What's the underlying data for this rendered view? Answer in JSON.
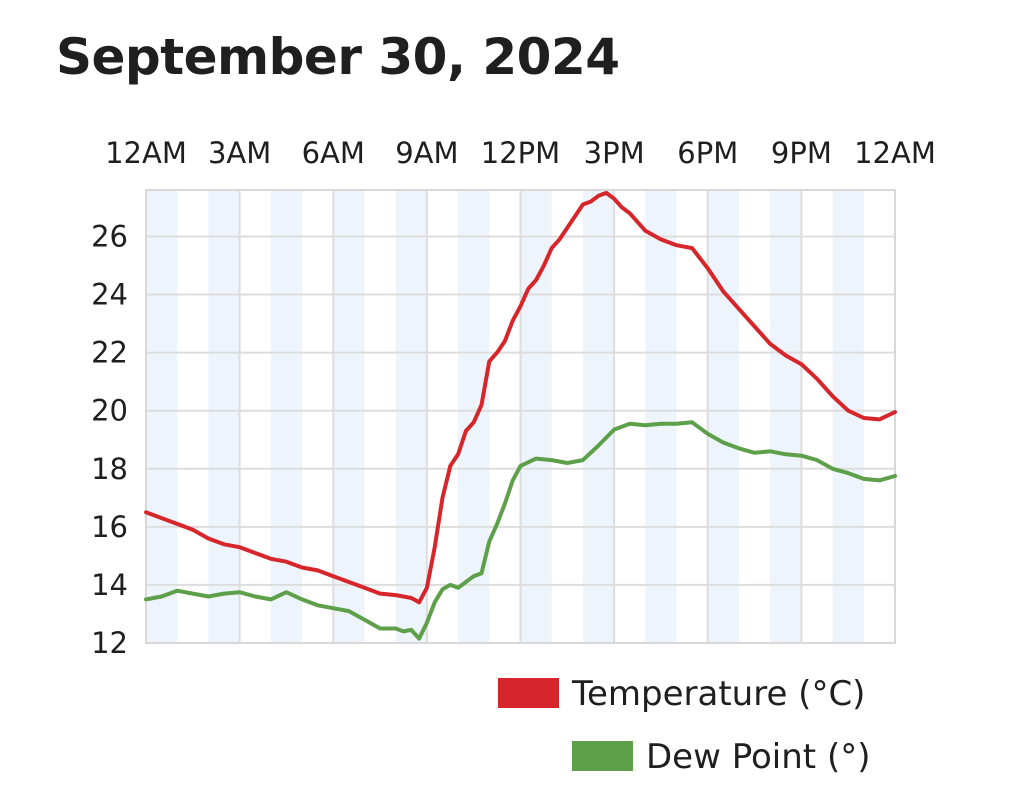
{
  "title": "September 30, 2024",
  "chart_data": {
    "type": "line",
    "title": "September 30, 2024",
    "x_ticks": [
      "12AM",
      "3AM",
      "6AM",
      "9AM",
      "12PM",
      "3PM",
      "6PM",
      "9PM",
      "12AM"
    ],
    "y_ticks": [
      12,
      14,
      16,
      18,
      20,
      22,
      24,
      26
    ],
    "xlim": [
      0,
      24
    ],
    "ylim": [
      12,
      27.6
    ],
    "grid": true,
    "legend_position": "bottom-right",
    "series": [
      {
        "name": "Temperature (°C)",
        "color": "#d7262b",
        "x": [
          0,
          0.5,
          1,
          1.5,
          2,
          2.5,
          3,
          3.5,
          4,
          4.5,
          5,
          5.5,
          6,
          6.5,
          7,
          7.5,
          8,
          8.25,
          8.5,
          8.75,
          9,
          9.25,
          9.5,
          9.75,
          10,
          10.25,
          10.5,
          10.75,
          11,
          11.25,
          11.5,
          11.75,
          12,
          12.25,
          12.5,
          12.75,
          13,
          13.25,
          13.5,
          13.75,
          14,
          14.25,
          14.5,
          14.75,
          15,
          15.25,
          15.5,
          15.75,
          16,
          16.5,
          17,
          17.5,
          18,
          18.5,
          19,
          19.5,
          20,
          20.5,
          21,
          21.5,
          22,
          22.5,
          23,
          23.5,
          24
        ],
        "values": [
          16.5,
          16.3,
          16.1,
          15.9,
          15.6,
          15.4,
          15.3,
          15.1,
          14.9,
          14.8,
          14.6,
          14.5,
          14.3,
          14.1,
          13.9,
          13.7,
          13.65,
          13.6,
          13.55,
          13.4,
          13.9,
          15.3,
          17.0,
          18.1,
          18.5,
          19.3,
          19.6,
          20.2,
          21.7,
          22.0,
          22.4,
          23.1,
          23.6,
          24.2,
          24.5,
          25.0,
          25.6,
          25.9,
          26.3,
          26.7,
          27.1,
          27.2,
          27.4,
          27.5,
          27.3,
          27.0,
          26.8,
          26.5,
          26.2,
          25.9,
          25.7,
          25.6,
          24.9,
          24.1,
          23.5,
          22.9,
          22.3,
          21.9,
          21.6,
          21.1,
          20.5,
          20.0,
          19.75,
          19.7,
          19.95
        ]
      },
      {
        "name": "Dew Point (°)",
        "color": "#5ea04a",
        "x": [
          0,
          0.5,
          1,
          1.5,
          2,
          2.5,
          3,
          3.5,
          4,
          4.5,
          5,
          5.5,
          6,
          6.5,
          7,
          7.5,
          8,
          8.25,
          8.5,
          8.75,
          9,
          9.25,
          9.5,
          9.75,
          10,
          10.25,
          10.5,
          10.75,
          11,
          11.25,
          11.5,
          11.75,
          12,
          12.5,
          13,
          13.5,
          14,
          14.5,
          15,
          15.5,
          16,
          16.5,
          17,
          17.5,
          18,
          18.5,
          19,
          19.5,
          20,
          20.5,
          21,
          21.5,
          22,
          22.5,
          23,
          23.5,
          24
        ],
        "values": [
          13.5,
          13.6,
          13.8,
          13.7,
          13.6,
          13.7,
          13.75,
          13.6,
          13.5,
          13.75,
          13.5,
          13.3,
          13.2,
          13.1,
          12.8,
          12.5,
          12.5,
          12.4,
          12.45,
          12.15,
          12.7,
          13.4,
          13.85,
          14.0,
          13.9,
          14.1,
          14.3,
          14.4,
          15.5,
          16.1,
          16.8,
          17.6,
          18.1,
          18.35,
          18.3,
          18.2,
          18.3,
          18.8,
          19.35,
          19.55,
          19.5,
          19.55,
          19.55,
          19.6,
          19.2,
          18.9,
          18.7,
          18.55,
          18.6,
          18.5,
          18.45,
          18.3,
          18.0,
          17.85,
          17.65,
          17.6,
          17.75
        ]
      }
    ]
  }
}
